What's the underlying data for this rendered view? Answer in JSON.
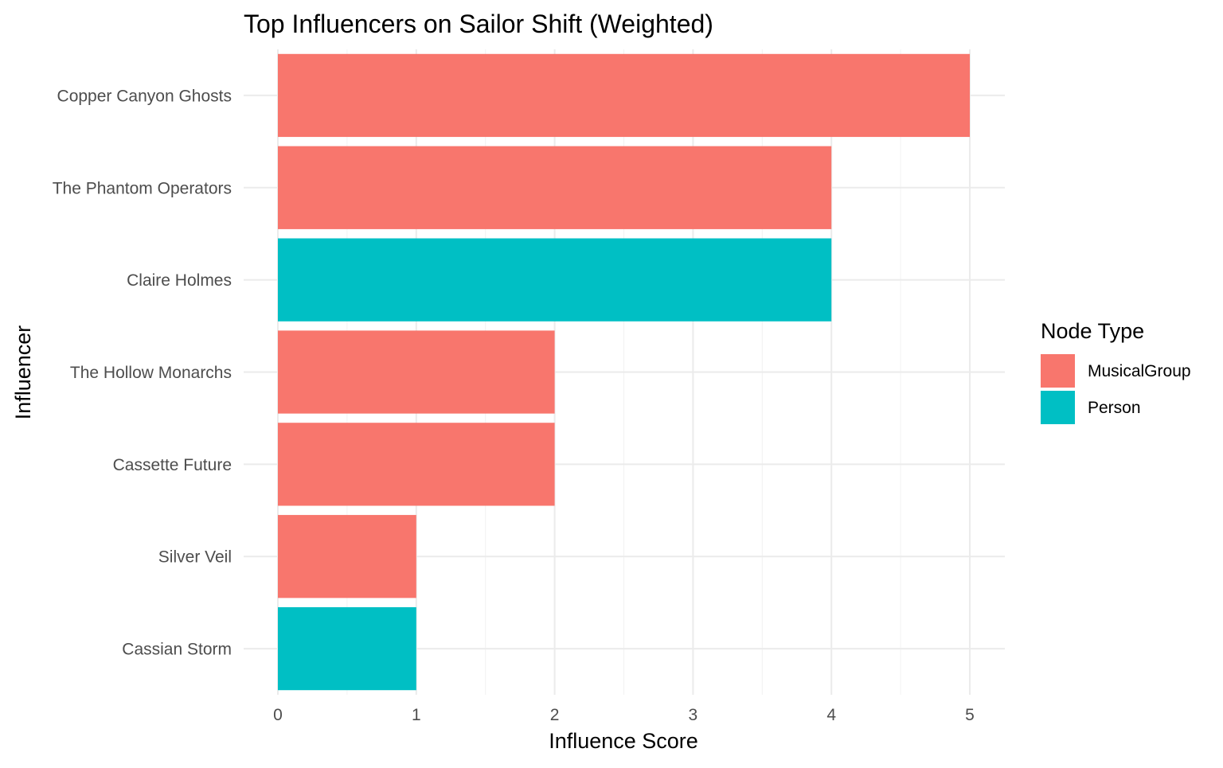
{
  "chart_data": {
    "type": "bar",
    "orientation": "horizontal",
    "title": "Top Influencers on Sailor Shift (Weighted)",
    "xlabel": "Influence Score",
    "ylabel": "Influencer",
    "xlim": [
      0,
      5.25
    ],
    "x_ticks": [
      0,
      1,
      2,
      3,
      4,
      5
    ],
    "grid": true,
    "categories": [
      "Copper Canyon Ghosts",
      "The Phantom Operators",
      "Claire Holmes",
      "The Hollow Monarchs",
      "Cassette Future",
      "Silver Veil",
      "Cassian Storm"
    ],
    "values": [
      5,
      4,
      4,
      2,
      2,
      1,
      1
    ],
    "node_type": [
      "MusicalGroup",
      "MusicalGroup",
      "Person",
      "MusicalGroup",
      "MusicalGroup",
      "MusicalGroup",
      "Person"
    ],
    "legend": {
      "title": "Node Type",
      "position": "right",
      "entries": [
        {
          "label": "MusicalGroup",
          "color": "#F8766D"
        },
        {
          "label": "Person",
          "color": "#00BFC4"
        }
      ]
    }
  }
}
